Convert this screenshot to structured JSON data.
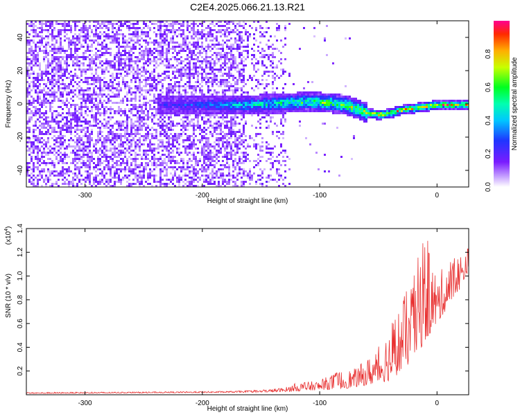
{
  "title": "C2E4.2025.066.21.13.R21",
  "chart_data": [
    {
      "type": "heatmap",
      "xlabel": "Height of straight line (km)",
      "ylabel": "Frequency (Hz)",
      "xlim": [
        -350,
        27
      ],
      "ylim": [
        -50,
        50
      ],
      "xticks": [
        -300,
        -200,
        -100,
        0
      ],
      "yticks": [
        -40,
        -20,
        0,
        20,
        40
      ],
      "colorbar": {
        "label": "Normalized spectral amplitude",
        "range": [
          0,
          1
        ],
        "ticks": [
          "0.0",
          "0.2",
          "0.4",
          "0.6",
          "0.8"
        ],
        "tick_values": [
          0.0,
          0.2,
          0.4,
          0.6,
          0.8
        ]
      },
      "ridge": {
        "x": [
          -240,
          -200,
          -160,
          -130,
          -110,
          -90,
          -80,
          -70,
          -60,
          -50,
          -40,
          -30,
          -20,
          -10,
          0,
          10,
          20,
          27
        ],
        "y": [
          0,
          0,
          0,
          1,
          2,
          1,
          0,
          -2,
          -5,
          -6,
          -5,
          -3,
          -2,
          -1,
          0,
          0,
          0,
          0
        ]
      }
    },
    {
      "type": "line",
      "xlabel": "Height of straight line (km)",
      "ylabel": "SNR (10 * v/v)",
      "y_multiplier": "(x10",
      "y_multiplier_exp": "4",
      "xlim": [
        -350,
        27
      ],
      "ylim": [
        0,
        1.4
      ],
      "xticks": [
        -300,
        -200,
        -100,
        0
      ],
      "yticks": [
        "0.2",
        "0.4",
        "0.6",
        "0.8",
        "1.0",
        "1.2",
        "1.4"
      ],
      "ytick_values": [
        0.2,
        0.4,
        0.6,
        0.8,
        1.0,
        1.2,
        1.4
      ],
      "color": "#e83030",
      "envelope_x": [
        -350,
        -250,
        -180,
        -150,
        -130,
        -120,
        -100,
        -85,
        -70,
        -60,
        -50,
        -40,
        -30,
        -20,
        -12,
        -8,
        0,
        10,
        20,
        27
      ],
      "envelope_y": [
        0.02,
        0.025,
        0.03,
        0.04,
        0.06,
        0.1,
        0.12,
        0.2,
        0.22,
        0.3,
        0.4,
        0.6,
        0.8,
        1.0,
        1.35,
        1.3,
        1.0,
        1.15,
        1.2,
        1.25
      ],
      "baseline_x": [
        -350,
        -250,
        -150,
        -120,
        -100,
        -80,
        -60,
        -40,
        -30,
        -20,
        -10,
        0,
        10,
        20,
        27
      ],
      "baseline_y": [
        0.01,
        0.015,
        0.02,
        0.03,
        0.04,
        0.05,
        0.08,
        0.12,
        0.2,
        0.3,
        0.45,
        0.6,
        0.75,
        0.9,
        1.05
      ]
    }
  ]
}
